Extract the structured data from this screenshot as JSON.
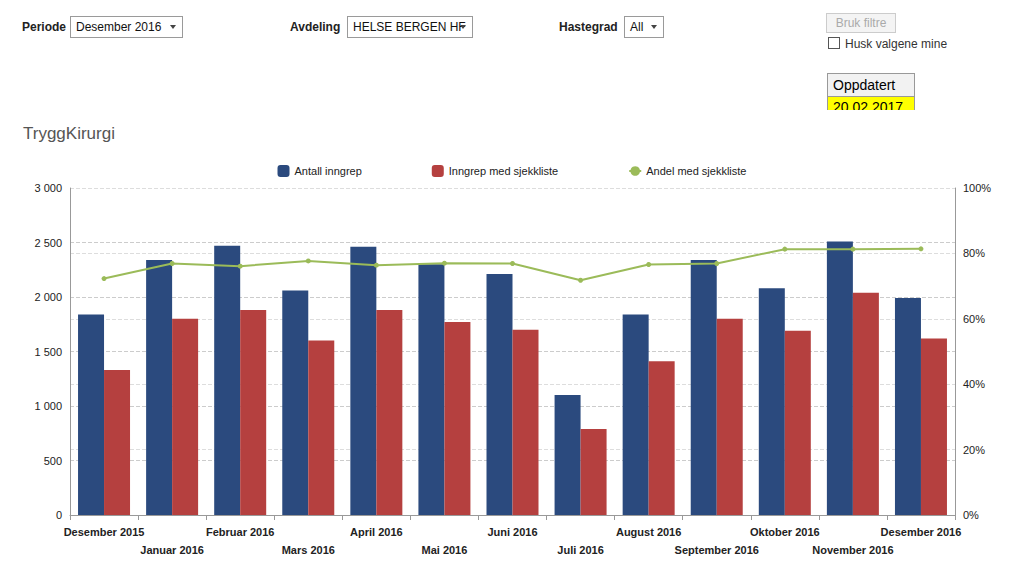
{
  "header": {
    "filters": [
      {
        "label": "Periode",
        "value": "Desember 2016"
      },
      {
        "label": "Avdeling",
        "value": "HELSE BERGEN HF"
      },
      {
        "label": "Hastegrad",
        "value": "All"
      }
    ],
    "button": "Bruk filtre",
    "checkbox": "Husk valgene mine",
    "updated_label": "Oppdatert",
    "updated_date": "20.02.2017"
  },
  "chart_data": {
    "type": "bar",
    "title": "TryggKirurgi",
    "categories": [
      "Desember 2015",
      "Januar 2016",
      "Februar 2016",
      "Mars 2016",
      "April 2016",
      "Mai 2016",
      "Juni 2016",
      "Juli 2016",
      "August 2016",
      "September 2016",
      "Oktober 2016",
      "November 2016",
      "Desember 2016"
    ],
    "series": [
      {
        "name": "Antall inngrep",
        "type": "bar",
        "color": "#2b4a7e",
        "values": [
          1840,
          2340,
          2470,
          2060,
          2460,
          2300,
          2210,
          1100,
          1840,
          2340,
          2080,
          2510,
          1990
        ]
      },
      {
        "name": "Inngrep med sjekkliste",
        "type": "bar",
        "color": "#b5403f",
        "values": [
          1330,
          1800,
          1880,
          1600,
          1880,
          1770,
          1700,
          790,
          1410,
          1800,
          1690,
          2040,
          1620
        ]
      },
      {
        "name": "Andel med sjekkliste",
        "type": "line",
        "axis": "y2",
        "color": "#9bbb59",
        "marker": "circle",
        "values": [
          72.3,
          76.9,
          76.1,
          77.7,
          76.4,
          77.0,
          76.9,
          71.8,
          76.6,
          76.9,
          81.3,
          81.3,
          81.4
        ]
      }
    ],
    "ylim": [
      0,
      3000
    ],
    "yticks": [
      0,
      500,
      {
        "value": 1000,
        "label": "1 000"
      },
      {
        "value": 1500,
        "label": "1 500"
      },
      {
        "value": 2000,
        "label": "2 000"
      },
      {
        "value": 2500,
        "label": "2 500"
      },
      {
        "value": 3000,
        "label": "3 000"
      }
    ],
    "y2lim": [
      0,
      100
    ],
    "y2ticks": [
      {
        "value": 0,
        "label": "0%"
      },
      {
        "value": 20,
        "label": "20%"
      },
      {
        "value": 40,
        "label": "40%"
      },
      {
        "value": 60,
        "label": "60%"
      },
      {
        "value": 80,
        "label": "80%"
      },
      {
        "value": 100,
        "label": "100%"
      }
    ],
    "grid": true,
    "legend": "top"
  }
}
